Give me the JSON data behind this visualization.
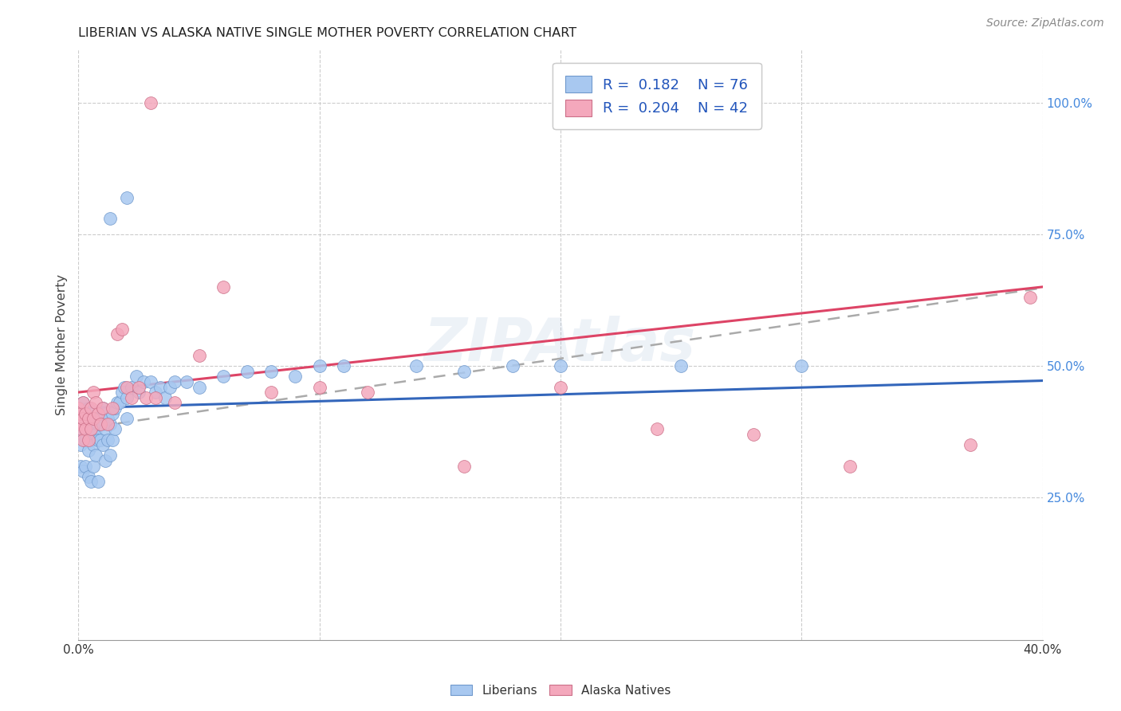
{
  "title": "LIBERIAN VS ALASKA NATIVE SINGLE MOTHER POVERTY CORRELATION CHART",
  "source": "Source: ZipAtlas.com",
  "ylabel": "Single Mother Poverty",
  "xlim": [
    0.0,
    0.4
  ],
  "ylim": [
    -0.02,
    1.1
  ],
  "right_ytick_vals": [
    0.25,
    0.5,
    0.75,
    1.0
  ],
  "right_ytick_labels": [
    "25.0%",
    "50.0%",
    "75.0%",
    "100.0%"
  ],
  "legend_blue_R": "0.182",
  "legend_blue_N": "76",
  "legend_pink_R": "0.204",
  "legend_pink_N": "42",
  "watermark": "ZIPAtlas",
  "blue_face": "#A8C8F0",
  "blue_edge": "#7099CC",
  "pink_face": "#F4A8BC",
  "pink_edge": "#CC7088",
  "blue_line_color": "#3366BB",
  "pink_line_color": "#DD4466",
  "dashed_line_color": "#AAAAAA",
  "grid_color": "#CCCCCC",
  "title_color": "#222222",
  "source_color": "#888888",
  "right_tick_color": "#4488DD",
  "blue_x": [
    0.0,
    0.001,
    0.001,
    0.001,
    0.001,
    0.002,
    0.002,
    0.002,
    0.002,
    0.003,
    0.003,
    0.003,
    0.003,
    0.004,
    0.004,
    0.004,
    0.004,
    0.005,
    0.005,
    0.005,
    0.006,
    0.006,
    0.006,
    0.007,
    0.007,
    0.007,
    0.008,
    0.008,
    0.008,
    0.009,
    0.009,
    0.01,
    0.01,
    0.01,
    0.011,
    0.011,
    0.012,
    0.012,
    0.013,
    0.013,
    0.014,
    0.014,
    0.015,
    0.015,
    0.016,
    0.017,
    0.018,
    0.019,
    0.02,
    0.02,
    0.022,
    0.024,
    0.025,
    0.027,
    0.03,
    0.032,
    0.034,
    0.036,
    0.038,
    0.04,
    0.045,
    0.05,
    0.06,
    0.07,
    0.08,
    0.09,
    0.1,
    0.11,
    0.14,
    0.16,
    0.18,
    0.2,
    0.25,
    0.3,
    0.02,
    0.013
  ],
  "blue_y": [
    0.4,
    0.38,
    0.42,
    0.35,
    0.31,
    0.39,
    0.37,
    0.43,
    0.3,
    0.38,
    0.4,
    0.36,
    0.31,
    0.39,
    0.42,
    0.34,
    0.29,
    0.4,
    0.36,
    0.28,
    0.38,
    0.35,
    0.31,
    0.4,
    0.37,
    0.33,
    0.39,
    0.36,
    0.28,
    0.4,
    0.36,
    0.39,
    0.42,
    0.35,
    0.38,
    0.32,
    0.4,
    0.36,
    0.39,
    0.33,
    0.41,
    0.36,
    0.42,
    0.38,
    0.43,
    0.43,
    0.45,
    0.46,
    0.44,
    0.4,
    0.46,
    0.48,
    0.45,
    0.47,
    0.47,
    0.45,
    0.46,
    0.44,
    0.46,
    0.47,
    0.47,
    0.46,
    0.48,
    0.49,
    0.49,
    0.48,
    0.5,
    0.5,
    0.5,
    0.49,
    0.5,
    0.5,
    0.5,
    0.5,
    0.82,
    0.78
  ],
  "pink_x": [
    0.0,
    0.001,
    0.001,
    0.001,
    0.002,
    0.002,
    0.002,
    0.003,
    0.003,
    0.004,
    0.004,
    0.005,
    0.005,
    0.006,
    0.006,
    0.007,
    0.008,
    0.009,
    0.01,
    0.012,
    0.014,
    0.016,
    0.018,
    0.02,
    0.022,
    0.025,
    0.028,
    0.032,
    0.04,
    0.05,
    0.06,
    0.08,
    0.1,
    0.12,
    0.16,
    0.2,
    0.24,
    0.28,
    0.32,
    0.37,
    0.395,
    0.03
  ],
  "pink_y": [
    0.42,
    0.39,
    0.41,
    0.38,
    0.4,
    0.43,
    0.36,
    0.41,
    0.38,
    0.4,
    0.36,
    0.42,
    0.38,
    0.4,
    0.45,
    0.43,
    0.41,
    0.39,
    0.42,
    0.39,
    0.42,
    0.56,
    0.57,
    0.46,
    0.44,
    0.46,
    0.44,
    0.44,
    0.43,
    0.52,
    0.65,
    0.45,
    0.46,
    0.45,
    0.31,
    0.46,
    0.38,
    0.37,
    0.31,
    0.35,
    0.63,
    1.0
  ]
}
